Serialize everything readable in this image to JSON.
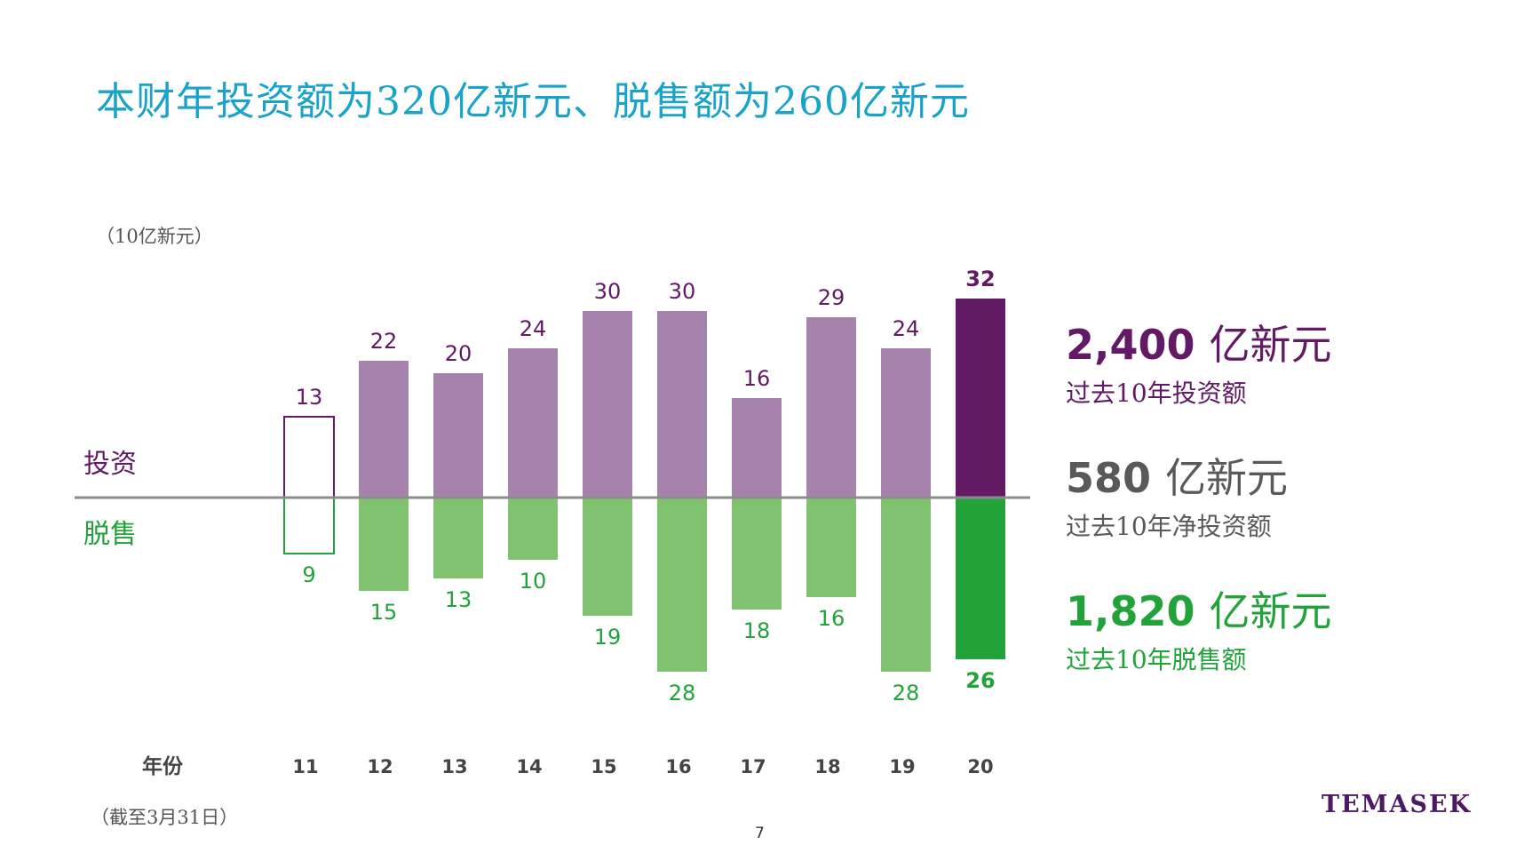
{
  "title": "本财年投资额为320亿新元、脱售额为260亿新元",
  "unit_label": "（10亿新元）",
  "footnote": "（截至3月31日）",
  "page_number": "7",
  "logo": "TEMASEK",
  "colors": {
    "title": "#1aa3c8",
    "investment": "#a583ad",
    "investment_current": "#611a63",
    "divestment": "#80c26f",
    "divestment_current": "#21a33a",
    "investment_text": "#611a63",
    "divestment_text": "#21a33a"
  },
  "chart_data": {
    "type": "bar",
    "xlabel": "年份",
    "categories": [
      "11",
      "12",
      "13",
      "14",
      "15",
      "16",
      "17",
      "18",
      "19",
      "20"
    ],
    "series": [
      {
        "name": "投资",
        "values": [
          13,
          22,
          20,
          24,
          30,
          30,
          16,
          29,
          24,
          32
        ]
      },
      {
        "name": "脱售",
        "values": [
          9,
          15,
          13,
          10,
          19,
          28,
          18,
          16,
          28,
          26
        ]
      }
    ],
    "outlined_category": "11",
    "highlighted_category": "20",
    "grid": false
  },
  "summary": [
    {
      "number": "2,400",
      "unit": "亿新元",
      "caption": "过去10年投资额"
    },
    {
      "number": "580",
      "unit": "亿新元",
      "caption": "过去10年净投资额"
    },
    {
      "number": "1,820",
      "unit": "亿新元",
      "caption": "过去10年脱售额"
    }
  ]
}
